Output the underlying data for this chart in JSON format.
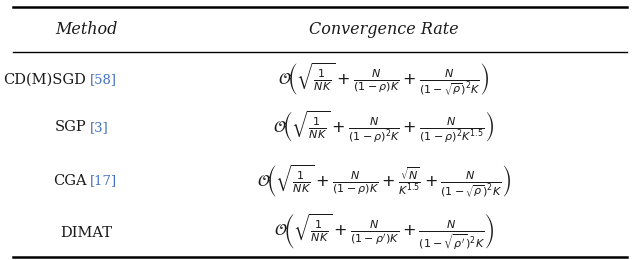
{
  "title_col1": "Method",
  "title_col2": "Convergence Rate",
  "rows": [
    {
      "method": "CD(M)SGD",
      "ref": "[58]",
      "formula": "$\\mathcal{O}\\!\\left(\\sqrt{\\frac{1}{NK}} + \\frac{N}{(1-\\rho)K} + \\frac{N}{(1-\\sqrt{\\rho})^2 K}\\right)$"
    },
    {
      "method": "SGP",
      "ref": "[3]",
      "formula": "$\\mathcal{O}\\!\\left(\\sqrt{\\frac{1}{NK}} + \\frac{N}{(1-\\rho)^2 K} + \\frac{N}{(1-\\rho)^2 K^{1.5}}\\right)$"
    },
    {
      "method": "CGA",
      "ref": "[17]",
      "formula": "$\\mathcal{O}\\!\\left(\\sqrt{\\frac{1}{NK}} + \\frac{N}{(1-\\rho)K} + \\frac{\\sqrt{N}}{K^{1.5}} + \\frac{N}{(1-\\sqrt{\\rho})^2 K}\\right)$"
    },
    {
      "method": "DIMAT",
      "ref": "",
      "formula": "$\\mathcal{O}\\!\\left(\\sqrt{\\frac{1}{NK}} + \\frac{N}{(1-\\rho')K} + \\frac{N}{(1-\\sqrt{\\rho'})^2 K}\\right)$"
    }
  ],
  "ref_color": "#4472C4",
  "bg_color": "#FFFFFF",
  "text_color": "#1a1a1a",
  "header_fontsize": 11.5,
  "body_fontsize": 10.5,
  "formula_fontsize": 11.5,
  "fig_width": 6.4,
  "fig_height": 2.6
}
